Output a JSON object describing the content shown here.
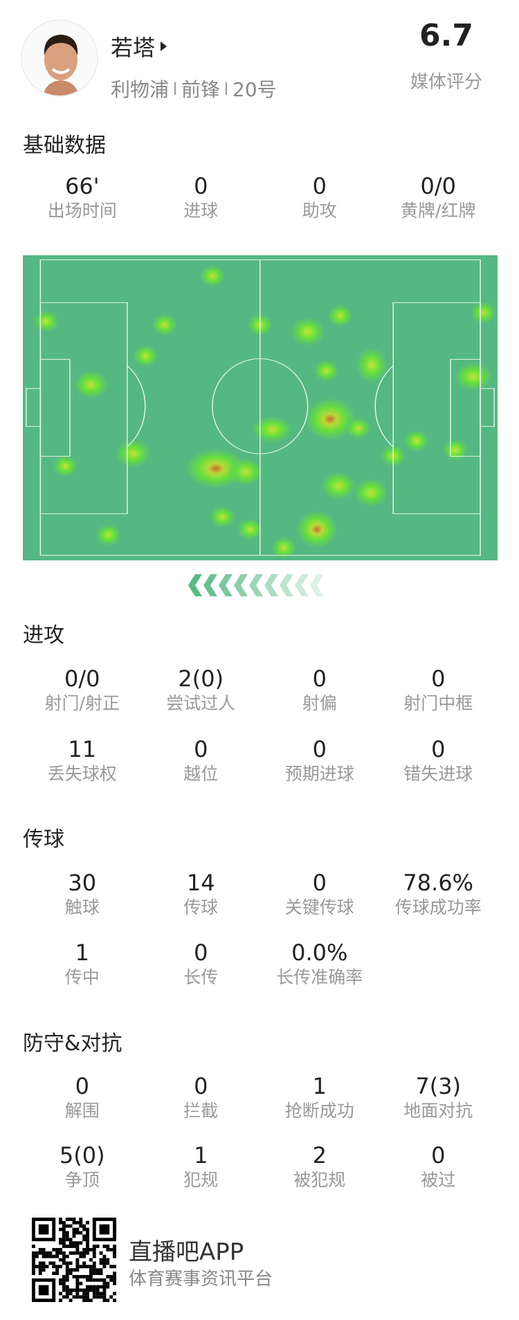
{
  "player": {
    "name": "若塔",
    "team": "利物浦",
    "position": "前锋",
    "number": "20号",
    "rating": "6.7",
    "rating_label": "媒体评分"
  },
  "sections": [
    {
      "title": "基础数据",
      "rows": [
        [
          {
            "v": "66'",
            "l": "出场时间"
          },
          {
            "v": "0",
            "l": "进球"
          },
          {
            "v": "0",
            "l": "助攻"
          },
          {
            "v": "0/0",
            "l": "黄牌/红牌"
          }
        ]
      ]
    },
    {
      "title": "进攻",
      "rows": [
        [
          {
            "v": "0/0",
            "l": "射门/射正"
          },
          {
            "v": "2(0)",
            "l": "尝试过人"
          },
          {
            "v": "0",
            "l": "射偏"
          },
          {
            "v": "0",
            "l": "射门中框"
          }
        ],
        [
          {
            "v": "11",
            "l": "丢失球权"
          },
          {
            "v": "0",
            "l": "越位"
          },
          {
            "v": "0",
            "l": "预期进球"
          },
          {
            "v": "0",
            "l": "错失进球"
          }
        ]
      ]
    },
    {
      "title": "传球",
      "rows": [
        [
          {
            "v": "30",
            "l": "触球"
          },
          {
            "v": "14",
            "l": "传球"
          },
          {
            "v": "0",
            "l": "关键传球"
          },
          {
            "v": "78.6%",
            "l": "传球成功率"
          }
        ],
        [
          {
            "v": "1",
            "l": "传中"
          },
          {
            "v": "0",
            "l": "长传"
          },
          {
            "v": "0.0%",
            "l": "长传准确率"
          }
        ]
      ]
    },
    {
      "title": "防守&对抗",
      "rows": [
        [
          {
            "v": "0",
            "l": "解围"
          },
          {
            "v": "0",
            "l": "拦截"
          },
          {
            "v": "1",
            "l": "抢断成功"
          },
          {
            "v": "7(3)",
            "l": "地面对抗"
          }
        ],
        [
          {
            "v": "5(0)",
            "l": "争顶"
          },
          {
            "v": "1",
            "l": "犯规"
          },
          {
            "v": "2",
            "l": "被犯规"
          },
          {
            "v": "0",
            "l": "被过"
          }
        ]
      ]
    }
  ],
  "heatmap": {
    "pitch_color": "#55b882",
    "line_color": "#e6f5ea",
    "attack_direction": "left"
  },
  "footer": {
    "app_name": "直播吧APP",
    "tagline": "体育赛事资讯平台"
  },
  "icons": {
    "avatar": "player-photo",
    "arrow": "chevron-left-icon",
    "qr": "qr-code"
  }
}
